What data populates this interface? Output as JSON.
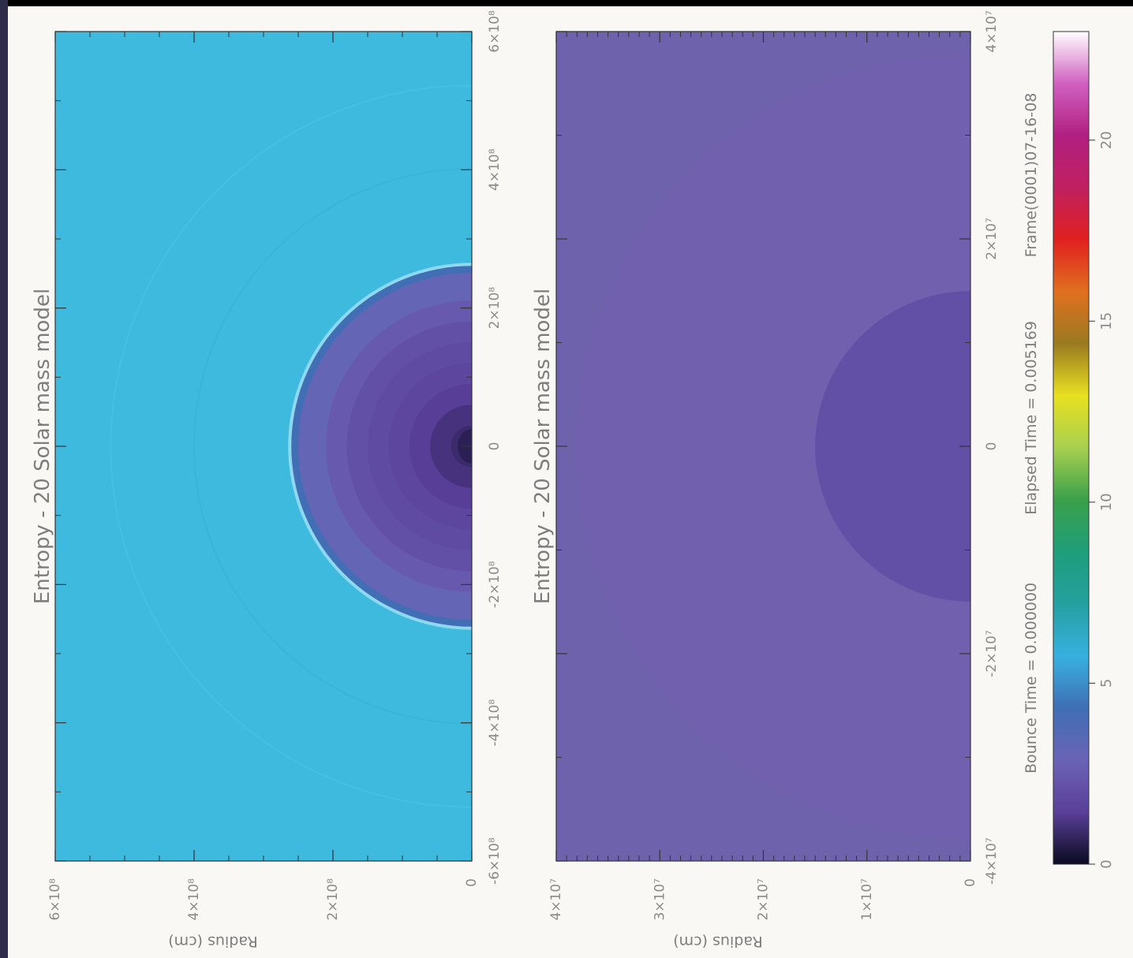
{
  "chart_data": [
    {
      "type": "heatmap",
      "title": "Entropy - 20 Solar mass model",
      "ylabel": "Radius (cm)",
      "x_ticks": [
        "-6×10⁸",
        "-4×10⁸",
        "-2×10⁸",
        "0",
        "2×10⁸",
        "4×10⁸",
        "6×10⁸"
      ],
      "y_ticks": [
        "0",
        "2×10⁸",
        "4×10⁸",
        "6×10⁸"
      ],
      "xlim": [
        -600000000,
        600000000
      ],
      "ylim": [
        0,
        600000000
      ],
      "core_radius_cm": 260000000,
      "background_entropy": 5,
      "rings": [
        {
          "r": 260000000,
          "entropy": 4.2
        },
        {
          "r": 250000000,
          "entropy": 3.1
        },
        {
          "r": 210000000,
          "entropy": 2.5
        },
        {
          "r": 180000000,
          "entropy": 2.1
        },
        {
          "r": 150000000,
          "entropy": 1.9
        },
        {
          "r": 120000000,
          "entropy": 1.7
        },
        {
          "r": 90000000,
          "entropy": 1.4
        },
        {
          "r": 60000000,
          "entropy": 1.1
        },
        {
          "r": 30000000,
          "entropy": 0.9
        }
      ]
    },
    {
      "type": "heatmap",
      "title": "Entropy - 20 Solar mass model",
      "ylabel": "Radius (cm)",
      "x_ticks": [
        "-4×10⁷",
        "-2×10⁷",
        "0",
        "2×10⁷",
        "4×10⁷"
      ],
      "y_ticks": [
        "0",
        "1×10⁷",
        "2×10⁷",
        "3×10⁷",
        "4×10⁷"
      ],
      "xlim": [
        -40000000,
        40000000
      ],
      "ylim": [
        0,
        40000000
      ],
      "background_entropy": 1.2,
      "rings": [
        {
          "r": 15000000,
          "entropy": 0.9
        }
      ]
    }
  ],
  "footer": {
    "bounce_time": "Bounce Time = 0.000000",
    "elapsed_time": "Elapsed Time = 0.005169",
    "frame": "Frame(0001)07-16-08"
  },
  "colorbar": {
    "ticks": [
      "0",
      "5",
      "10",
      "15",
      "20"
    ],
    "range": [
      0,
      23
    ],
    "stops": [
      "#0a0a20",
      "#5a3f99",
      "#6b63b5",
      "#3f6fb5",
      "#38b0e0",
      "#25a0a0",
      "#1f9e7a",
      "#3aa04a",
      "#a8d050",
      "#e8e020",
      "#9a7a20",
      "#e07020",
      "#e02020",
      "#c02060",
      "#b02080",
      "#d060c0",
      "#ffffff"
    ]
  },
  "colors": {
    "page_bg": "#faf8f4",
    "outer_bg": "#000000",
    "shock_edge": "#8ed8f0",
    "axis": "#333333",
    "text": "#8a8a8a"
  }
}
